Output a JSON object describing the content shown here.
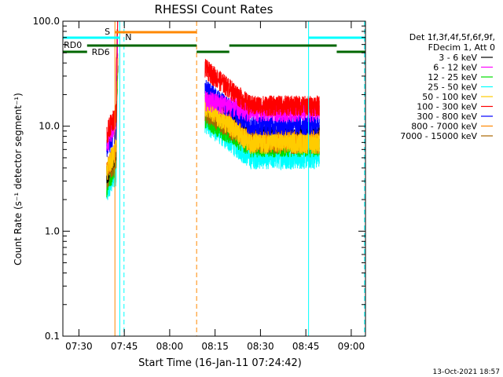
{
  "chart_data": {
    "type": "line",
    "title": "RHESSI Count Rates",
    "xlabel": "Start Time (16-Jan-11 07:24:42)",
    "ylabel": "Count Rate (s⁻¹ detector segment⁻¹)",
    "yscale": "log",
    "ylim": [
      0.1,
      100
    ],
    "xlim_minutes": [
      0,
      100
    ],
    "y_ticks": [
      {
        "value": 0.1,
        "label": "0.1"
      },
      {
        "value": 1,
        "label": "1.0"
      },
      {
        "value": 10,
        "label": "10.0"
      },
      {
        "value": 100,
        "label": "100.0"
      }
    ],
    "x_ticks": [
      {
        "t": 5.3,
        "label": "07:30"
      },
      {
        "t": 20.3,
        "label": "07:45"
      },
      {
        "t": 35.3,
        "label": "08:00"
      },
      {
        "t": 50.3,
        "label": "08:15"
      },
      {
        "t": 65.3,
        "label": "08:30"
      },
      {
        "t": 80.3,
        "label": "08:45"
      },
      {
        "t": 95.3,
        "label": "09:00"
      }
    ],
    "legend_header": [
      "Det 1f,3f,4f,5f,6f,9f,",
      "FDecim 1, Att 0"
    ],
    "series": [
      {
        "name": "3 - 6 keV",
        "color": "#000000",
        "pre": 5.0,
        "start": 20.0,
        "end": 8.5
      },
      {
        "name": "6 - 12 keV",
        "color": "#ff00ff",
        "pre": 10.0,
        "start": 18.0,
        "end": 14.0
      },
      {
        "name": "12 - 25 keV",
        "color": "#00dd00",
        "pre": 4.0,
        "start": 12.0,
        "end": 6.5
      },
      {
        "name": "25 - 50 keV",
        "color": "#00ffff",
        "pre": 3.2,
        "start": 11.0,
        "end": 5.0
      },
      {
        "name": "50 - 100 keV",
        "color": "#ffcc00",
        "pre": 5.5,
        "start": 16.0,
        "end": 7.0
      },
      {
        "name": "100 - 300 keV",
        "color": "#ff0000",
        "pre": 12.0,
        "start": 36.0,
        "end": 16.0
      },
      {
        "name": "300 - 800 keV",
        "color": "#0000ff",
        "pre": 8.5,
        "start": 23.0,
        "end": 10.5
      },
      {
        "name": "800 - 7000 keV",
        "color": "#ff8800",
        "pre": 5.5,
        "start": 17.0,
        "end": 7.5
      },
      {
        "name": "7000 - 15000 keV",
        "color": "#aa6600",
        "pre": 4.5,
        "start": 14.0,
        "end": 7.0
      }
    ],
    "annotations": {
      "s_label": "S",
      "n_label": "N",
      "rd0_label": "RD0",
      "rd6_label": "RD6",
      "s_color": "#ff8800",
      "n_color": "#00ffff",
      "rd_color": "#006600"
    },
    "footer_date": "13-Oct-2021 18:57"
  }
}
